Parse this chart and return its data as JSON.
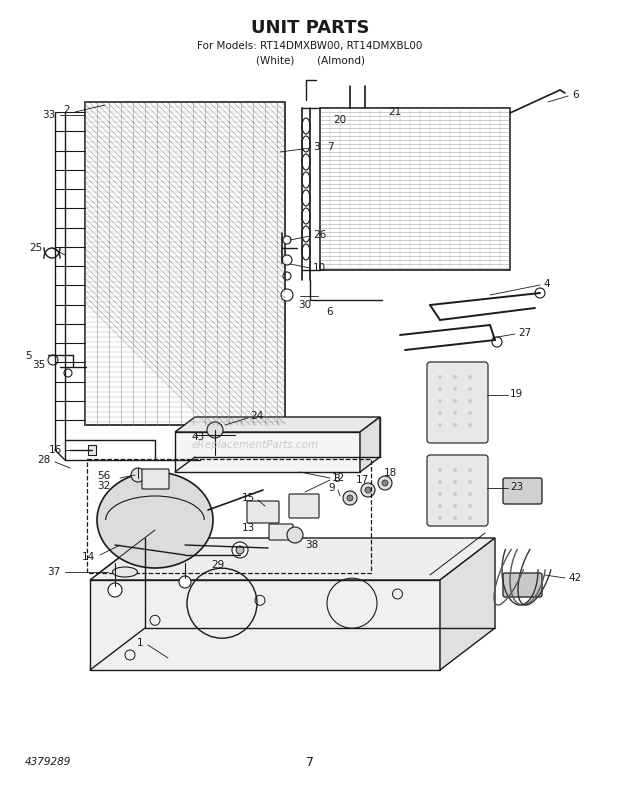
{
  "title": "UNIT PARTS",
  "subtitle_line1": "For Models: RT14DMXBW00, RT14DMXBL00",
  "subtitle_line2": "(White)       (Almond)",
  "part_number": "4379289",
  "page_number": "7",
  "bg_color": "#ffffff",
  "text_color": "#1a1a1a",
  "line_color": "#1a1a1a",
  "watermark": "eReplacementParts.com",
  "fig_w": 6.2,
  "fig_h": 7.91,
  "dpi": 100
}
